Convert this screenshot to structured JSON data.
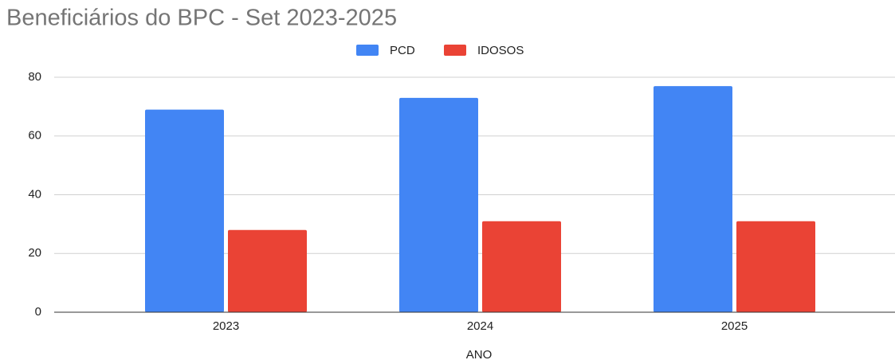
{
  "chart_data": {
    "type": "bar",
    "title": "Beneficiários do BPC - Set 2023-2025",
    "x_label": "ANO",
    "categories": [
      "2023",
      "2024",
      "2025"
    ],
    "series": [
      {
        "name": "PCD",
        "color": "#4285f4",
        "values": [
          69,
          73,
          77
        ]
      },
      {
        "name": "IDOSOS",
        "color": "#ea4335",
        "values": [
          28,
          31,
          31
        ]
      }
    ],
    "ylim": [
      0,
      80
    ],
    "yticks": [
      0,
      20,
      40,
      60,
      80
    ],
    "grid": true,
    "legend": "top"
  }
}
